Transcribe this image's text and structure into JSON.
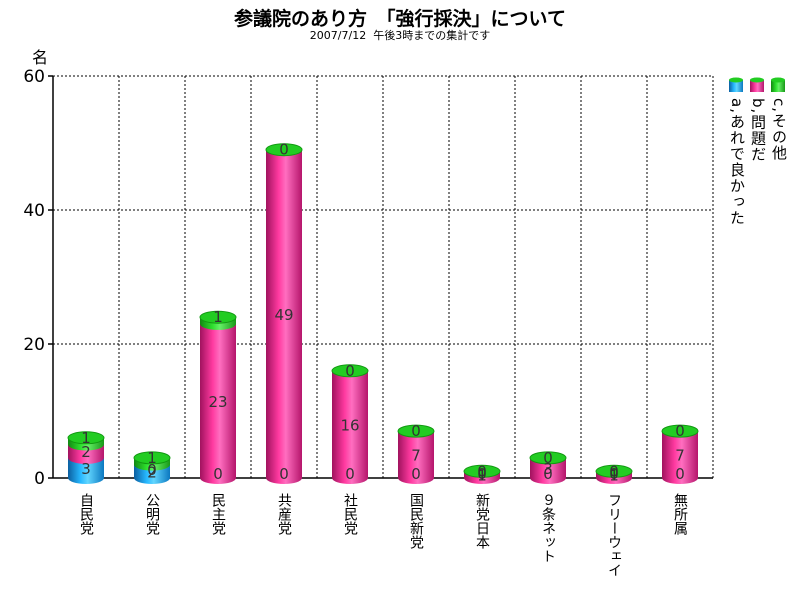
{
  "title": "参議院のあり方　「強行採決」について",
  "subtitle": "2007/7/12  午後3時までの集計です",
  "colors": {
    "a": "#1ea8ef",
    "b": "#ee2c93",
    "c": "#22cc22"
  },
  "legend": [
    {
      "key": "a",
      "label": "a,あれで良かった"
    },
    {
      "key": "b",
      "label": "b,問題だ"
    },
    {
      "key": "c",
      "label": "c,その他"
    }
  ],
  "chart_data": {
    "type": "bar",
    "stacked": true,
    "ylabel": "名",
    "ylim": [
      0,
      60
    ],
    "yticks": [
      0,
      20,
      40,
      60
    ],
    "grid": true,
    "legend_position": "right",
    "categories": [
      "自民党",
      "公明党",
      "民主党",
      "共産党",
      "社民党",
      "国民新党",
      "新党日本",
      "９条ネット",
      "フリーウェイ",
      "無所属"
    ],
    "series": [
      {
        "name": "a,あれで良かった",
        "values": [
          3,
          2,
          0,
          0,
          0,
          0,
          0,
          0,
          0,
          0
        ]
      },
      {
        "name": "b,問題だ",
        "values": [
          2,
          0,
          23,
          49,
          16,
          7,
          1,
          3,
          1,
          7
        ]
      },
      {
        "name": "c,その他",
        "values": [
          1,
          1,
          1,
          0,
          0,
          0,
          0,
          0,
          0,
          0
        ]
      }
    ]
  }
}
